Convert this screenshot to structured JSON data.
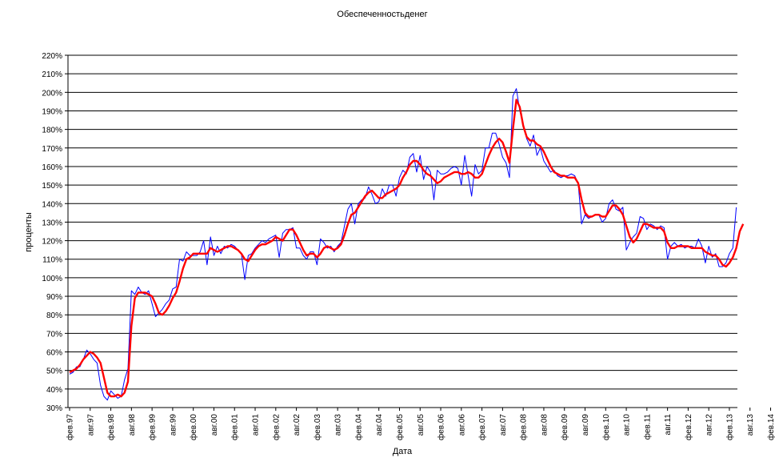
{
  "chart_data": {
    "type": "line",
    "title": "Обеспеченностьденег",
    "xlabel": "Дата",
    "ylabel": "проценты",
    "ylim": [
      30,
      220
    ],
    "y_ticks": [
      "30%",
      "40%",
      "50%",
      "60%",
      "70%",
      "80%",
      "90%",
      "100%",
      "110%",
      "120%",
      "130%",
      "140%",
      "150%",
      "160%",
      "170%",
      "180%",
      "190%",
      "200%",
      "210%",
      "220%"
    ],
    "x_tick_labels": [
      "фев.97",
      "авг.97",
      "фев.98",
      "авг.98",
      "фев.99",
      "авг.99",
      "фев.00",
      "авг.00",
      "фев.01",
      "авг.01",
      "фев.02",
      "авг.02",
      "фев.03",
      "авг.03",
      "фев.04",
      "авг.04",
      "фев.05",
      "авг.05",
      "фев.06",
      "авг.06",
      "фев.07",
      "авг.07",
      "фев.08",
      "авг.08",
      "фев.09",
      "авг.09",
      "фев.10",
      "авг.10",
      "фев.11",
      "авг.11",
      "фев.12",
      "авг.12",
      "фев.13",
      "авг.13",
      "фев.14",
      "авг.14"
    ],
    "grid": "horizontal",
    "x_start": "фев.97",
    "x_step": "1 month",
    "series": [
      {
        "color": "#0000ff",
        "values": [
          48,
          49,
          52,
          52,
          56,
          61,
          59,
          56,
          54,
          42,
          36,
          34,
          39,
          37,
          35,
          36,
          45,
          51,
          93,
          91,
          95,
          92,
          91,
          93,
          86,
          79,
          81,
          83,
          86,
          88,
          94,
          95,
          110,
          109,
          114,
          112,
          112,
          112,
          114,
          120,
          107,
          122,
          112,
          117,
          113,
          117,
          116,
          118,
          117,
          115,
          113,
          99,
          112,
          113,
          116,
          118,
          120,
          119,
          121,
          122,
          123,
          111,
          124,
          126,
          126,
          127,
          116,
          116,
          112,
          110,
          114,
          114,
          107,
          121,
          119,
          116,
          117,
          114,
          117,
          119,
          128,
          137,
          140,
          129,
          140,
          142,
          143,
          149,
          145,
          140,
          141,
          148,
          144,
          150,
          150,
          144,
          154,
          158,
          156,
          165,
          167,
          157,
          166,
          153,
          160,
          157,
          142,
          158,
          156,
          156,
          157,
          159,
          160,
          159,
          150,
          166,
          155,
          144,
          161,
          156,
          158,
          170,
          170,
          178,
          178,
          172,
          165,
          162,
          154,
          198,
          202,
          190,
          183,
          175,
          171,
          177,
          166,
          170,
          163,
          160,
          157,
          158,
          155,
          154,
          155,
          155,
          156,
          155,
          151,
          129,
          134,
          132,
          133,
          134,
          134,
          130,
          132,
          140,
          142,
          137,
          136,
          138,
          115,
          119,
          122,
          124,
          133,
          132,
          126,
          129,
          128,
          126,
          128,
          127,
          110,
          117,
          119,
          117,
          118,
          116,
          117,
          117,
          116,
          121,
          117,
          108,
          117,
          111,
          113,
          106,
          106,
          108,
          113,
          116,
          138
        ]
      },
      {
        "color": "#ff0000",
        "values": [
          49,
          50,
          51,
          53,
          56,
          58,
          60,
          59,
          57,
          54,
          46,
          38,
          36,
          36,
          37,
          36,
          38,
          44,
          74,
          89,
          92,
          92,
          92,
          91,
          90,
          86,
          81,
          80,
          82,
          85,
          89,
          92,
          98,
          105,
          110,
          111,
          113,
          113,
          113,
          113,
          113,
          116,
          115,
          114,
          115,
          116,
          117,
          117,
          116,
          115,
          113,
          110,
          109,
          112,
          115,
          117,
          118,
          118,
          119,
          120,
          122,
          121,
          120,
          123,
          126,
          126,
          123,
          119,
          115,
          112,
          113,
          113,
          111,
          113,
          116,
          117,
          116,
          115,
          116,
          118,
          123,
          129,
          134,
          135,
          138,
          141,
          144,
          146,
          147,
          145,
          143,
          143,
          145,
          146,
          147,
          148,
          150,
          154,
          157,
          161,
          163,
          163,
          161,
          158,
          156,
          155,
          153,
          151,
          152,
          154,
          155,
          156,
          157,
          157,
          156,
          156,
          157,
          156,
          154,
          154,
          156,
          161,
          166,
          170,
          173,
          175,
          173,
          168,
          162,
          180,
          196,
          192,
          182,
          176,
          174,
          174,
          172,
          171,
          168,
          164,
          160,
          157,
          156,
          155,
          155,
          154,
          154,
          154,
          151,
          142,
          135,
          133,
          133,
          134,
          134,
          133,
          133,
          136,
          139,
          139,
          137,
          134,
          128,
          122,
          119,
          121,
          125,
          129,
          129,
          128,
          127,
          127,
          127,
          125,
          119,
          116,
          116,
          117,
          117,
          117,
          117,
          116,
          116,
          116,
          116,
          114,
          113,
          112,
          112,
          110,
          107,
          106,
          108,
          111,
          116,
          125,
          129
        ]
      }
    ]
  }
}
